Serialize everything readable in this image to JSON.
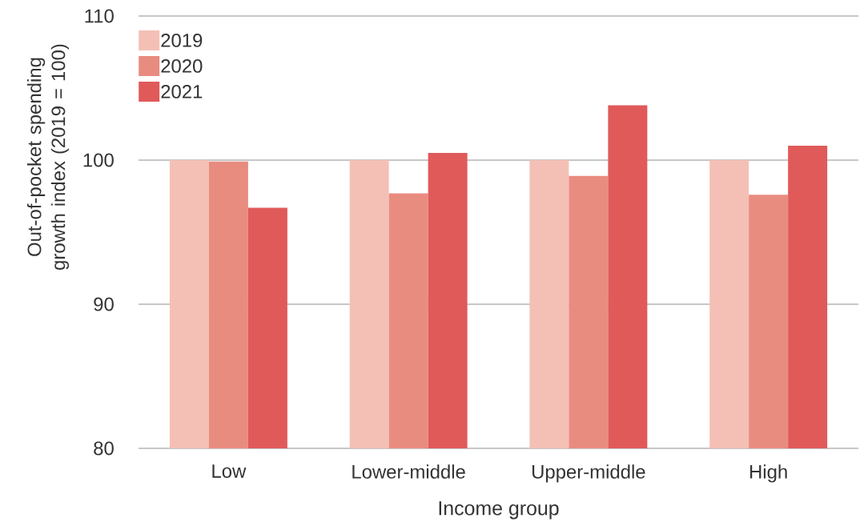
{
  "chart_data": {
    "type": "bar",
    "xlabel": "Income group",
    "ylabel": "Out-of-pocket spending growth index (2019 = 100)",
    "categories": [
      "Low",
      "Lower-middle",
      "Upper-middle",
      "High"
    ],
    "series": [
      {
        "name": "2019",
        "color": "#f4c0b6",
        "values": [
          100,
          100,
          100,
          100
        ]
      },
      {
        "name": "2020",
        "color": "#e98c80",
        "values": [
          99.9,
          97.7,
          98.9,
          97.6
        ]
      },
      {
        "name": "2021",
        "color": "#e05a5a",
        "values": [
          96.7,
          100.5,
          103.8,
          101.0
        ]
      }
    ],
    "ylim": [
      80,
      110
    ],
    "yticks": [
      80,
      90,
      100,
      110
    ],
    "grid": "y",
    "legend": "top left"
  }
}
